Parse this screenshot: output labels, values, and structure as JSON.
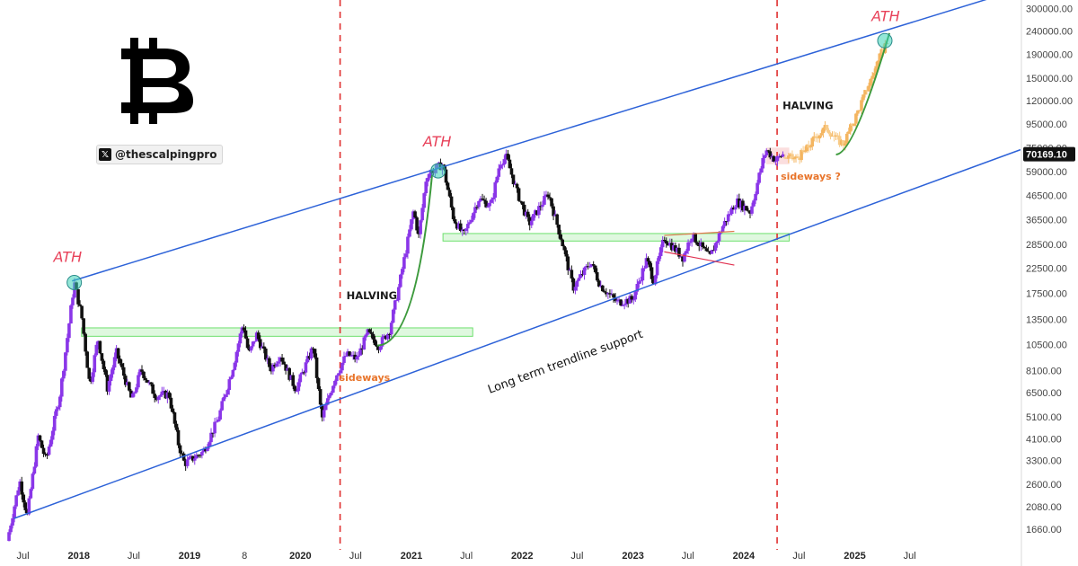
{
  "chart_data": {
    "type": "candlestick",
    "y_scale": "log",
    "ylim": [
      1480,
      310000
    ],
    "xlim": [
      "2017-05-10",
      "2026-07-01"
    ],
    "grid": false,
    "legend": "none",
    "price_ticks": [
      300000,
      240000,
      190000,
      150000,
      120000,
      95000,
      75000,
      59000,
      46500,
      36500,
      28500,
      22500,
      17500,
      13500,
      10500,
      8100,
      6500,
      5100,
      4100,
      3300,
      2600,
      2080,
      1660
    ],
    "price_tick_labels": [
      "300000.00",
      "240000.00",
      "190000.00",
      "150000.00",
      "120000.00",
      "95000.00",
      "75000.00",
      "59000.00",
      "46500.00",
      "36500.00",
      "28500.00",
      "22500.00",
      "17500.00",
      "13500.00",
      "10500.00",
      "8100.00",
      "6500.00",
      "5100.00",
      "4100.00",
      "3300.00",
      "2600.00",
      "2080.00",
      "1660.00"
    ],
    "time_ticks": [
      {
        "date": "2017-07-01",
        "label": "Jul",
        "year": false
      },
      {
        "date": "2018-01-01",
        "label": "2018",
        "year": true
      },
      {
        "date": "2018-07-01",
        "label": "Jul",
        "year": false
      },
      {
        "date": "2019-01-01",
        "label": "2019",
        "year": true
      },
      {
        "date": "2019-07-01",
        "label": "8",
        "year": false
      },
      {
        "date": "2020-01-01",
        "label": "2020",
        "year": true
      },
      {
        "date": "2020-07-01",
        "label": "Jul",
        "year": false
      },
      {
        "date": "2021-01-01",
        "label": "2021",
        "year": true
      },
      {
        "date": "2021-07-01",
        "label": "Jul",
        "year": false
      },
      {
        "date": "2022-01-01",
        "label": "2022",
        "year": true
      },
      {
        "date": "2022-07-01",
        "label": "Jul",
        "year": false
      },
      {
        "date": "2023-01-01",
        "label": "2023",
        "year": true
      },
      {
        "date": "2023-07-01",
        "label": "Jul",
        "year": false
      },
      {
        "date": "2024-01-01",
        "label": "2024",
        "year": true
      },
      {
        "date": "2024-07-01",
        "label": "Jul",
        "year": false
      },
      {
        "date": "2025-01-01",
        "label": "2025",
        "year": true
      },
      {
        "date": "2025-07-01",
        "label": "Jul",
        "year": false
      }
    ],
    "current_price": {
      "value": 70169.1,
      "label": "70169.10"
    },
    "price_anchors": [
      [
        "2017-05-10",
        1480
      ],
      [
        "2017-06-20",
        2700
      ],
      [
        "2017-07-15",
        1900
      ],
      [
        "2017-08-20",
        4200
      ],
      [
        "2017-09-15",
        3300
      ],
      [
        "2017-11-01",
        6500
      ],
      [
        "2017-12-17",
        19500
      ],
      [
        "2018-01-10",
        14000
      ],
      [
        "2018-02-06",
        7000
      ],
      [
        "2018-03-05",
        11200
      ],
      [
        "2018-04-05",
        6800
      ],
      [
        "2018-05-05",
        9700
      ],
      [
        "2018-06-25",
        6000
      ],
      [
        "2018-07-25",
        8200
      ],
      [
        "2018-09-10",
        6300
      ],
      [
        "2018-10-25",
        6400
      ],
      [
        "2018-11-25",
        3900
      ],
      [
        "2018-12-15",
        3200
      ],
      [
        "2019-02-15",
        3600
      ],
      [
        "2019-04-05",
        5000
      ],
      [
        "2019-05-25",
        8500
      ],
      [
        "2019-06-26",
        13000
      ],
      [
        "2019-07-15",
        9500
      ],
      [
        "2019-08-10",
        11600
      ],
      [
        "2019-09-25",
        8200
      ],
      [
        "2019-10-26",
        9500
      ],
      [
        "2019-12-17",
        6700
      ],
      [
        "2020-02-12",
        10300
      ],
      [
        "2020-03-12",
        5000
      ],
      [
        "2020-04-25",
        7600
      ],
      [
        "2020-06-01",
        9500
      ],
      [
        "2020-07-05",
        9100
      ],
      [
        "2020-08-10",
        11800
      ],
      [
        "2020-09-15",
        10400
      ],
      [
        "2020-10-20",
        12000
      ],
      [
        "2020-11-20",
        18500
      ],
      [
        "2021-01-08",
        40000
      ],
      [
        "2021-01-25",
        31000
      ],
      [
        "2021-02-20",
        57000
      ],
      [
        "2021-03-15",
        60000
      ],
      [
        "2021-04-14",
        63500
      ],
      [
        "2021-05-20",
        37000
      ],
      [
        "2021-06-22",
        31000
      ],
      [
        "2021-08-10",
        45000
      ],
      [
        "2021-09-20",
        42000
      ],
      [
        "2021-10-20",
        65000
      ],
      [
        "2021-11-10",
        68000
      ],
      [
        "2021-12-15",
        48000
      ],
      [
        "2022-01-24",
        35000
      ],
      [
        "2022-03-28",
        47500
      ],
      [
        "2022-05-10",
        30000
      ],
      [
        "2022-06-18",
        18500
      ],
      [
        "2022-08-15",
        24000
      ],
      [
        "2022-09-15",
        19000
      ],
      [
        "2022-11-09",
        16000
      ],
      [
        "2022-12-31",
        16500
      ],
      [
        "2023-02-15",
        24500
      ],
      [
        "2023-03-10",
        20000
      ],
      [
        "2023-04-14",
        30500
      ],
      [
        "2023-06-15",
        25000
      ],
      [
        "2023-07-13",
        31500
      ],
      [
        "2023-09-11",
        25000
      ],
      [
        "2023-10-25",
        34500
      ],
      [
        "2023-12-08",
        44000
      ],
      [
        "2024-01-23",
        39500
      ],
      [
        "2024-02-28",
        62000
      ],
      [
        "2024-03-14",
        73500
      ],
      [
        "2024-04-15",
        66000
      ],
      [
        "2024-05-10",
        70169
      ]
    ],
    "projection_anchors": [
      [
        "2024-05-10",
        68000
      ],
      [
        "2024-06-20",
        67000
      ],
      [
        "2024-07-20",
        72000
      ],
      [
        "2024-08-30",
        85000
      ],
      [
        "2024-09-30",
        92000
      ],
      [
        "2024-10-31",
        82000
      ],
      [
        "2024-11-25",
        78000
      ],
      [
        "2025-01-01",
        100000
      ],
      [
        "2025-02-15",
        140000
      ],
      [
        "2025-03-25",
        185000
      ],
      [
        "2025-04-20",
        224000
      ]
    ],
    "trend_lines": {
      "upper_channel": {
        "from": [
          "2017-12-10",
          19800
        ],
        "to": [
          "2025-05-20",
          250000
        ]
      },
      "lower_support": {
        "from": [
          "2017-06-01",
          1850
        ],
        "to": [
          "2025-05-25",
          47000
        ]
      }
    },
    "halving_dates": [
      "2020-05-11",
      "2024-04-20"
    ],
    "support_zones": [
      {
        "from": "2018-01-10",
        "to": "2021-07-22",
        "low": 11400,
        "high": 12400
      },
      {
        "from": "2021-04-15",
        "to": "2024-05-30",
        "low": 29500,
        "high": 31800
      }
    ],
    "highlight_zone": {
      "from": "2024-03-15",
      "to": "2024-05-30",
      "low": 63500,
      "high": 75000
    },
    "annotations": {
      "ath_labels": [
        "ATH",
        "ATH",
        "ATH"
      ],
      "halving_labels": [
        "HALVING",
        "HALVING"
      ],
      "sideways_labels": [
        "sideways",
        "sideways ?"
      ],
      "trendline_label": "Long term trendline support"
    }
  },
  "branding": {
    "logo_icon": "bitcoin-icon",
    "handle": "@thescalpingpro",
    "handle_icon": "x-logo-icon"
  },
  "colors": {
    "candle_up": "#8a36e8",
    "candle_down": "#111111",
    "projection": "#f4b560",
    "channel": "#2d62d8",
    "halving_line": "#e03030",
    "support_zone": "#6ee06e",
    "arc": "#3c9a3c",
    "ath_marker": "#3ad4b6",
    "ath_text": "#e8425a",
    "sideways_text": "#e8742a"
  }
}
